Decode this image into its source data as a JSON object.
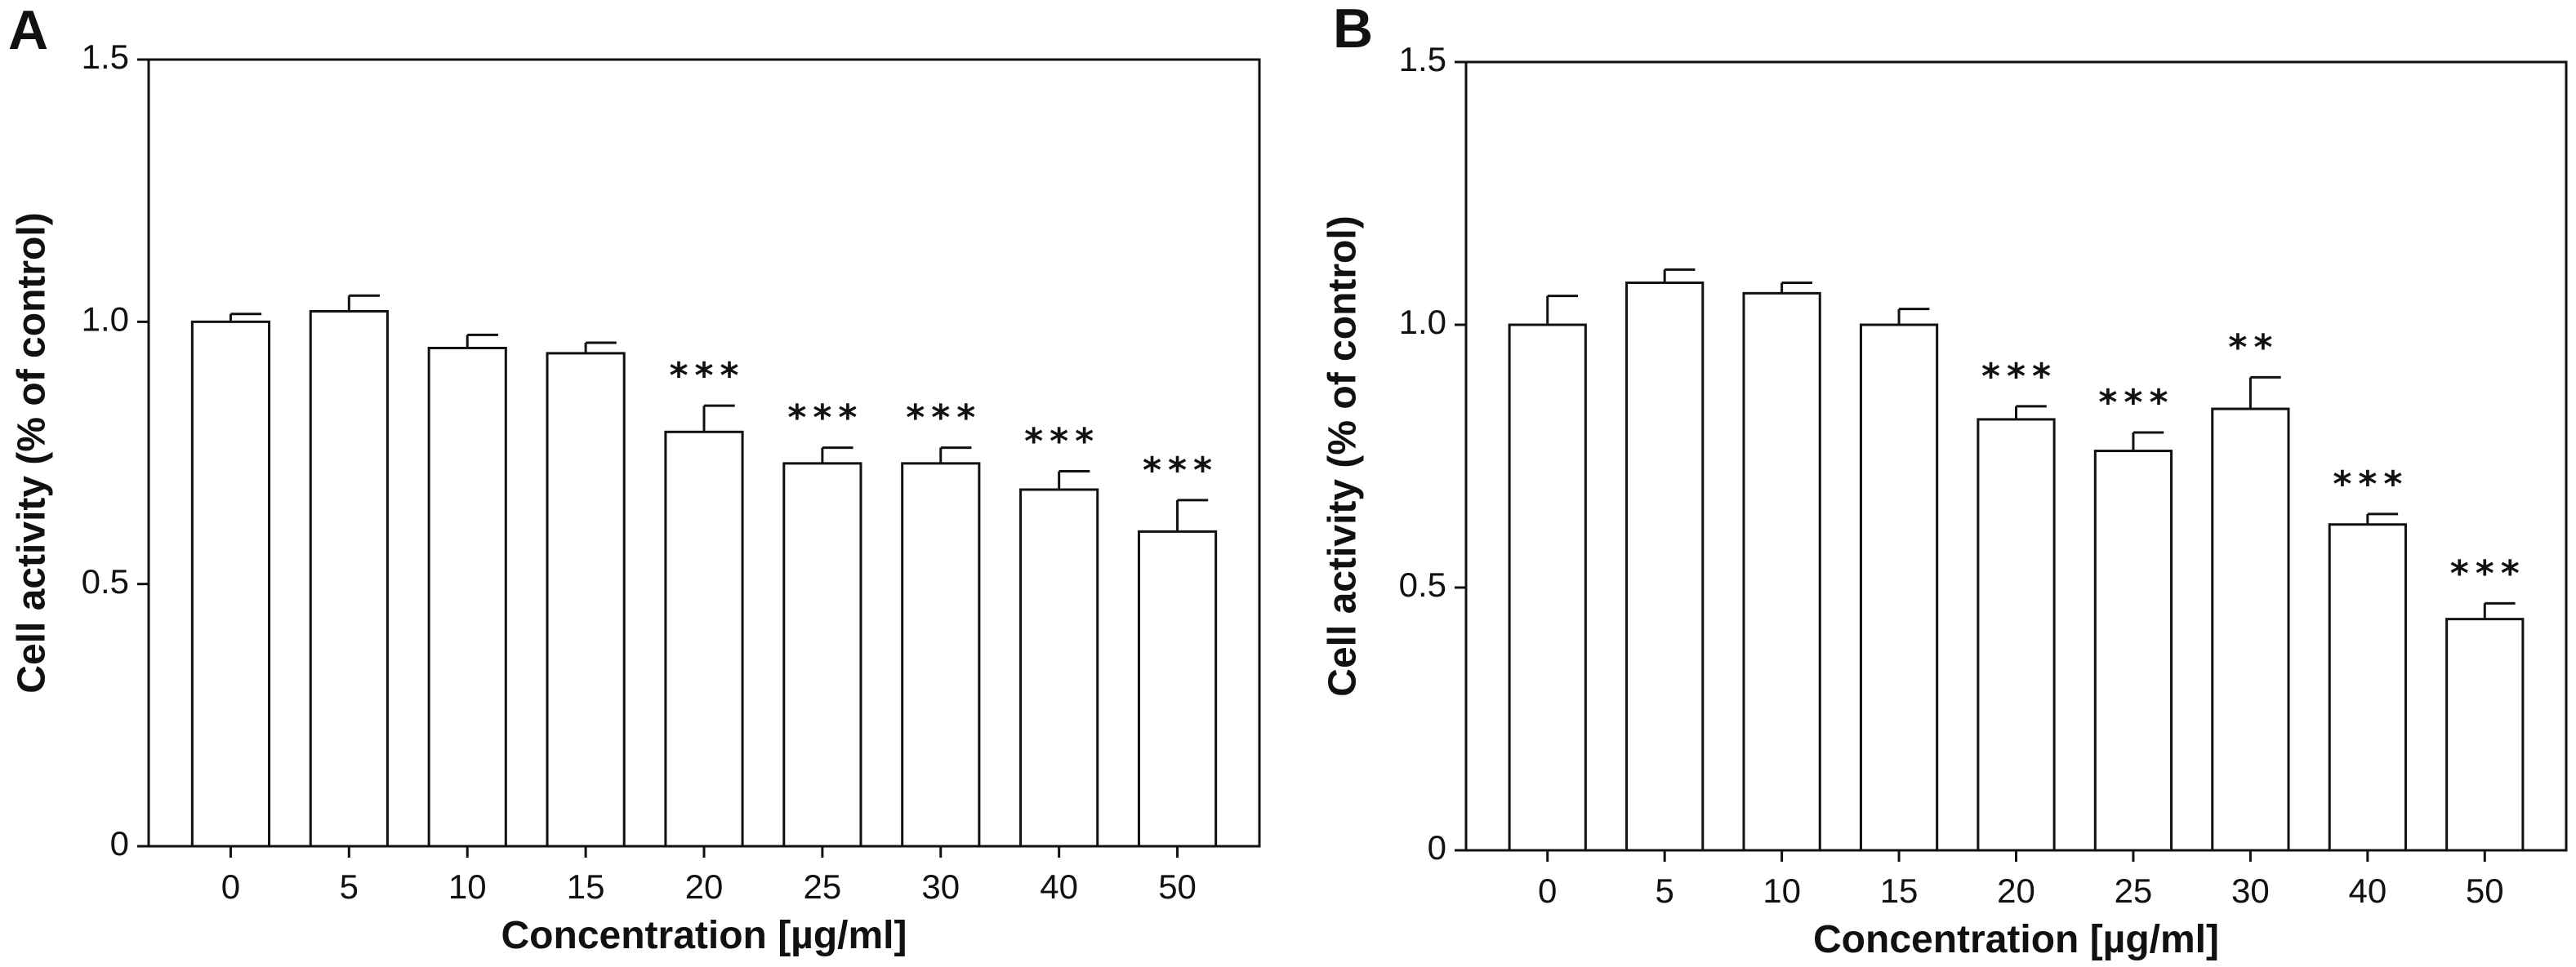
{
  "chart_data": [
    {
      "type": "bar",
      "panel": "A",
      "title": "",
      "xlabel": "Concentration [µg/ml]",
      "ylabel": "Cell activity (% of control)",
      "ylim": [
        0,
        1.5
      ],
      "yticks": [
        0,
        0.5,
        1.0,
        1.5
      ],
      "ytick_labels": [
        "0",
        "0.5",
        "1.0",
        "1.5"
      ],
      "grid": false,
      "categories": [
        "0",
        "5",
        "10",
        "15",
        "20",
        "25",
        "30",
        "40",
        "50"
      ],
      "series": [
        {
          "name": "Cell activity",
          "values": [
            1.0,
            1.02,
            0.95,
            0.94,
            0.79,
            0.73,
            0.73,
            0.68,
            0.6
          ],
          "errors": [
            0.015,
            0.03,
            0.025,
            0.02,
            0.05,
            0.03,
            0.03,
            0.035,
            0.06
          ]
        }
      ],
      "significance": [
        "",
        "",
        "",
        "",
        "***",
        "***",
        "***",
        "***",
        "***"
      ]
    },
    {
      "type": "bar",
      "panel": "B",
      "title": "",
      "xlabel": "Concentration [µg/ml]",
      "ylabel": "Cell activity (% of control)",
      "ylim": [
        0,
        1.5
      ],
      "yticks": [
        0,
        0.5,
        1.0,
        1.5
      ],
      "ytick_labels": [
        "0",
        "0.5",
        "1.0",
        "1.5"
      ],
      "grid": false,
      "categories": [
        "0",
        "5",
        "10",
        "15",
        "20",
        "25",
        "30",
        "40",
        "50"
      ],
      "series": [
        {
          "name": "Cell activity",
          "values": [
            1.0,
            1.08,
            1.06,
            1.0,
            0.82,
            0.76,
            0.84,
            0.62,
            0.44
          ],
          "errors": [
            0.055,
            0.025,
            0.02,
            0.03,
            0.025,
            0.035,
            0.06,
            0.02,
            0.03
          ]
        }
      ],
      "significance": [
        "",
        "",
        "",
        "",
        "***",
        "***",
        "**",
        "***",
        "***"
      ]
    }
  ]
}
